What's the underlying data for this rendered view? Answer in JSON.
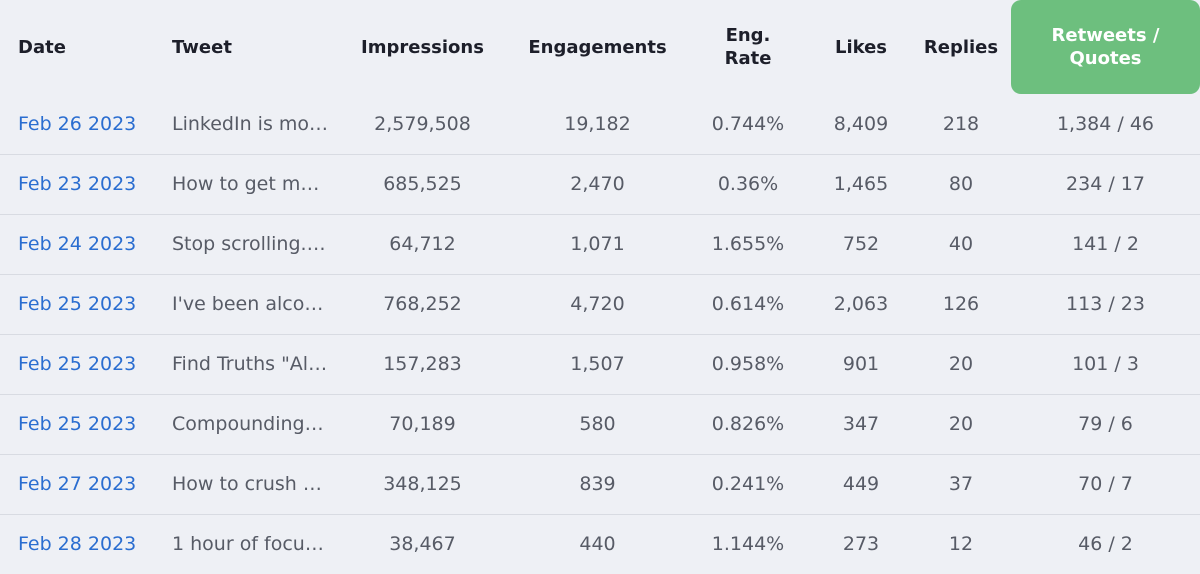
{
  "headers": {
    "date": "Date",
    "tweet": "Tweet",
    "impressions": "Impressions",
    "engagements": "Engagements",
    "eng_rate_line1": "Eng.",
    "eng_rate_line2": "Rate",
    "likes": "Likes",
    "replies": "Replies",
    "retweets_line1": "Retweets /",
    "retweets_line2": "Quotes"
  },
  "highlight_color": "#6dbf7e",
  "link_color": "#2a6dd0",
  "rows": [
    {
      "date": "Feb 26 2023",
      "tweet": "LinkedIn is mor…",
      "impressions": "2,579,508",
      "engagements": "19,182",
      "eng_rate": "0.744%",
      "likes": "8,409",
      "replies": "218",
      "retweets_quotes": "1,384 / 46"
    },
    {
      "date": "Feb 23 2023",
      "tweet": "How to get mo…",
      "impressions": "685,525",
      "engagements": "2,470",
      "eng_rate": "0.36%",
      "likes": "1,465",
      "replies": "80",
      "retweets_quotes": "234 / 17"
    },
    {
      "date": "Feb 24 2023",
      "tweet": "Stop scrolling. …",
      "impressions": "64,712",
      "engagements": "1,071",
      "eng_rate": "1.655%",
      "likes": "752",
      "replies": "40",
      "retweets_quotes": "141 / 2"
    },
    {
      "date": "Feb 25 2023",
      "tweet": "I've been alco…",
      "impressions": "768,252",
      "engagements": "4,720",
      "eng_rate": "0.614%",
      "likes": "2,063",
      "replies": "126",
      "retweets_quotes": "113 / 23"
    },
    {
      "date": "Feb 25 2023",
      "tweet": "Find Truths \"Al…",
      "impressions": "157,283",
      "engagements": "1,507",
      "eng_rate": "0.958%",
      "likes": "901",
      "replies": "20",
      "retweets_quotes": "101 / 3"
    },
    {
      "date": "Feb 25 2023",
      "tweet": "Compounding…",
      "impressions": "70,189",
      "engagements": "580",
      "eng_rate": "0.826%",
      "likes": "347",
      "replies": "20",
      "retweets_quotes": "79 / 6"
    },
    {
      "date": "Feb 27 2023",
      "tweet": "How to crush …",
      "impressions": "348,125",
      "engagements": "839",
      "eng_rate": "0.241%",
      "likes": "449",
      "replies": "37",
      "retweets_quotes": "70 / 7"
    },
    {
      "date": "Feb 28 2023",
      "tweet": "1 hour of focus…",
      "impressions": "38,467",
      "engagements": "440",
      "eng_rate": "1.144%",
      "likes": "273",
      "replies": "12",
      "retweets_quotes": "46 / 2"
    }
  ]
}
